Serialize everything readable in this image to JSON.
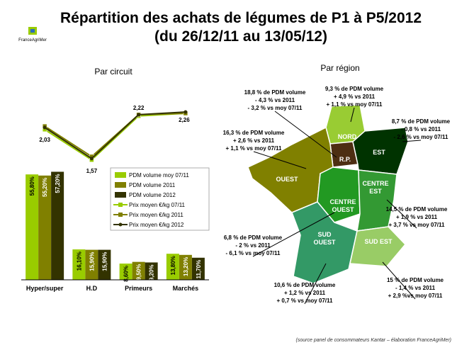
{
  "header": {
    "logo": "FranceAgriMer",
    "title": [
      "Répartition des achats de légumes de P1 à P5/2012",
      "(du 26/12/11 au 13/05/12)"
    ]
  },
  "chart_data": {
    "type": "bar",
    "title": "Par circuit",
    "categories": [
      "Hyper/super",
      "H.D",
      "Primeurs",
      "Marchés"
    ],
    "ylim": [
      0,
      60
    ],
    "y2lim": [
      1.4,
      2.45
    ],
    "series": [
      {
        "name": "PDM volume moy 07/11",
        "type": "bar",
        "color": "#99cc00",
        "values": [
          55.8,
          16.1,
          8.6,
          13.8
        ],
        "value_labels": [
          "55,80%",
          "16,10%",
          "8,60%",
          "13,80%"
        ]
      },
      {
        "name": "PDM volume 2011",
        "type": "bar",
        "color": "#808000",
        "values": [
          55.2,
          15.9,
          9.5,
          13.2
        ],
        "value_labels": [
          "55,20%",
          "15,90%",
          "9,50%",
          "13,20%"
        ]
      },
      {
        "name": "PDM volume 2012",
        "type": "bar",
        "color": "#333300",
        "values": [
          57.2,
          15.9,
          9.2,
          11.7
        ],
        "value_labels": [
          "57,20%",
          "15,90%",
          "9,20%",
          "11,70%"
        ]
      },
      {
        "name": "Prix moyen €/kg 07/11",
        "type": "line",
        "axis": "y2",
        "color": "#99cc00",
        "marker": "square",
        "values": [
          2.0,
          1.55,
          2.2,
          2.24
        ]
      },
      {
        "name": "Prix moyen €/kg 2011",
        "type": "line",
        "axis": "y2",
        "color": "#808000",
        "marker": "square",
        "values": [
          2.05,
          1.6,
          2.22,
          2.24
        ]
      },
      {
        "name": "Prix moyen €/kg 2012",
        "type": "line",
        "axis": "y2",
        "color": "#333300",
        "marker": "circle",
        "values": [
          2.03,
          1.57,
          2.22,
          2.26
        ],
        "value_labels": [
          "2,03",
          "1,57",
          "2,22",
          "2,26"
        ]
      }
    ]
  },
  "map": {
    "title": "Par région",
    "regions": [
      {
        "label": [
          "NORD"
        ],
        "annotation": [
          "9,3 % de PDM volume",
          "+ 4,9 % vs 2011",
          "+ 1,1 % vs moy 07/11"
        ]
      },
      {
        "label": [
          "R.P."
        ],
        "annotation": [
          "18,8 % de PDM volume",
          "- 4,3 % vs 2011",
          "- 3,2 % vs moy 07/11"
        ]
      },
      {
        "label": [
          "EST"
        ],
        "annotation": [
          "8,7 % de PDM volume",
          "- 0,8 % vs 2011",
          "- 2,6 % vs moy 07/11"
        ]
      },
      {
        "label": [
          "OUEST"
        ],
        "annotation": [
          "16,3 % de PDM volume",
          "+ 2,6 % vs 2011",
          "+ 1,1 % vs moy 07/11"
        ]
      },
      {
        "label": [
          "CENTRE",
          "EST"
        ],
        "annotation": [
          "14,5 % de PDM volume",
          "+ 1,9 % vs 2011",
          "+ 3,7 % vs moy 07/11"
        ]
      },
      {
        "label": [
          "CENTRE",
          "OUEST"
        ],
        "annotation": [
          "6,8 % de PDM volume",
          "- 2 % vs 2011",
          "- 6,1 % vs moy 07/11"
        ]
      },
      {
        "label": [
          "SUD",
          "OUEST"
        ],
        "annotation": [
          "10,6 % de PDM volume",
          "+ 1,2 % vs 2011",
          "+ 0,7 % vs moy 07/11"
        ]
      },
      {
        "label": [
          "SUD EST"
        ],
        "annotation": [
          "15 % de PDM volume",
          "- 1,4 % vs 2011",
          "+ 2,9 %vs moy 07/11"
        ]
      }
    ]
  },
  "footer": {
    "source": "(source panel de consommateurs Kantar – élaboration FranceAgriMer)"
  }
}
